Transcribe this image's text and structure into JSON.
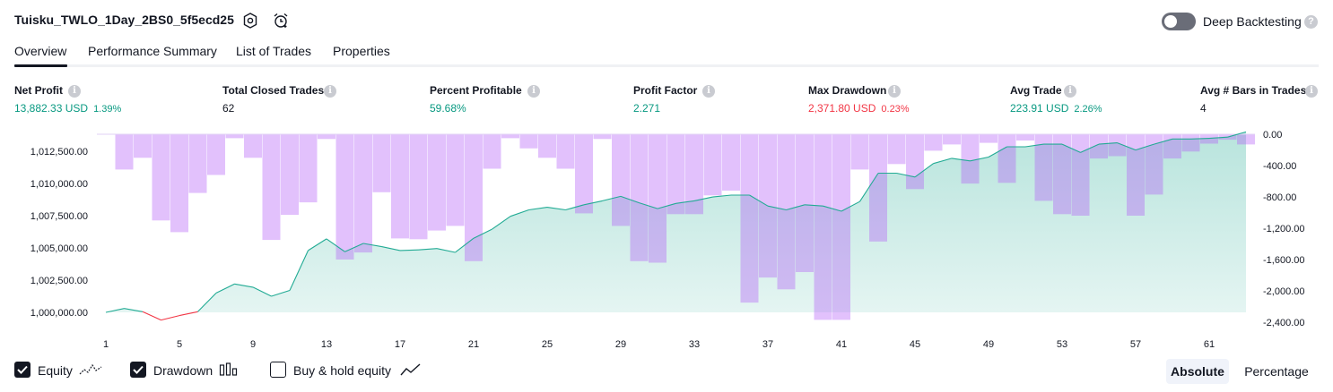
{
  "header": {
    "title": "Tuisku_TWLO_1Day_2BS0_5f5ecd25",
    "deep_backtesting_label": "Deep Backtesting",
    "deep_backtesting_on": false
  },
  "tabs": [
    "Overview",
    "Performance Summary",
    "List of Trades",
    "Properties"
  ],
  "active_tab": "Overview",
  "metrics": {
    "net_profit": {
      "label": "Net Profit",
      "value": "13,882.33 USD",
      "pct": "1.39%"
    },
    "total_closed_trades": {
      "label": "Total Closed Trades",
      "value": "62"
    },
    "percent_profitable": {
      "label": "Percent Profitable",
      "value": "59.68%"
    },
    "profit_factor": {
      "label": "Profit Factor",
      "value": "2.271"
    },
    "max_drawdown": {
      "label": "Max Drawdown",
      "value": "2,371.80 USD",
      "pct": "0.23%"
    },
    "avg_trade": {
      "label": "Avg Trade",
      "value": "223.91 USD",
      "pct": "2.26%"
    },
    "avg_bars": {
      "label": "Avg # Bars in Trades",
      "value": "4"
    }
  },
  "chart_data": {
    "type": "area",
    "left_axis": {
      "ticks": [
        "1,012,500.00",
        "1,010,000.00",
        "1,007,500.00",
        "1,005,000.00",
        "1,002,500.00",
        "1,000,000.00"
      ],
      "range": [
        999400,
        1014000
      ]
    },
    "right_axis": {
      "ticks": [
        "0.00",
        "-400.00",
        "-800.00",
        "-1,200.00",
        "-1,600.00",
        "-2,000.00",
        "-2,400.00"
      ],
      "range": [
        -2400,
        0
      ]
    },
    "x_ticks": [
      "1",
      "5",
      "9",
      "13",
      "17",
      "21",
      "25",
      "29",
      "33",
      "37",
      "41",
      "45",
      "49",
      "53",
      "57",
      "61"
    ],
    "equity": [
      1000000,
      1000300,
      1000050,
      999400,
      999750,
      1000050,
      1001500,
      1002200,
      1001950,
      1001250,
      1001700,
      1004800,
      1005700,
      1004700,
      1005350,
      1005100,
      1004800,
      1004850,
      1004950,
      1004650,
      1005750,
      1006450,
      1007450,
      1007950,
      1008150,
      1007950,
      1008350,
      1008650,
      1009000,
      1008500,
      1008050,
      1008450,
      1008650,
      1008950,
      1009100,
      1009100,
      1008250,
      1007950,
      1008350,
      1008250,
      1007850,
      1008600,
      1010800,
      1010800,
      1010500,
      1011550,
      1011950,
      1011750,
      1012050,
      1012850,
      1012850,
      1013050,
      1013050,
      1012400,
      1013050,
      1013150,
      1012600,
      1013050,
      1013450,
      1013450,
      1013500,
      1013600,
      1014000
    ],
    "drawdown": [
      0,
      -450,
      -300,
      -1100,
      -1250,
      -750,
      -520,
      -50,
      -300,
      -1350,
      -1030,
      -870,
      -60,
      -1600,
      -1510,
      -740,
      -1330,
      -1340,
      -1230,
      -1170,
      -1620,
      -440,
      -50,
      -180,
      -300,
      -440,
      -1010,
      -60,
      -1170,
      -1620,
      -1640,
      -1020,
      -1020,
      -780,
      -720,
      -2150,
      -1830,
      -1980,
      -1760,
      -2370,
      -2370,
      -450,
      -1370,
      -380,
      -700,
      -210,
      -130,
      -630,
      -110,
      -620,
      -80,
      -850,
      -1020,
      -1040,
      -310,
      -280,
      -1040,
      -770,
      -310,
      -220,
      -120,
      -70,
      -130
    ],
    "series": [
      {
        "name": "Equity"
      },
      {
        "name": "Drawdown"
      }
    ],
    "colors": {
      "equity_line": "#22ab94",
      "equity_below": "#f23645",
      "equity_fill": "#22ab94",
      "drawdown_fill": "#b35cf6"
    }
  },
  "legend": {
    "equity_label": "Equity",
    "equity_checked": true,
    "drawdown_label": "Drawdown",
    "drawdown_checked": true,
    "bh_label": "Buy & hold equity",
    "bh_checked": false
  },
  "scale_buttons": {
    "absolute": "Absolute",
    "percentage": "Percentage",
    "active": "Absolute"
  }
}
